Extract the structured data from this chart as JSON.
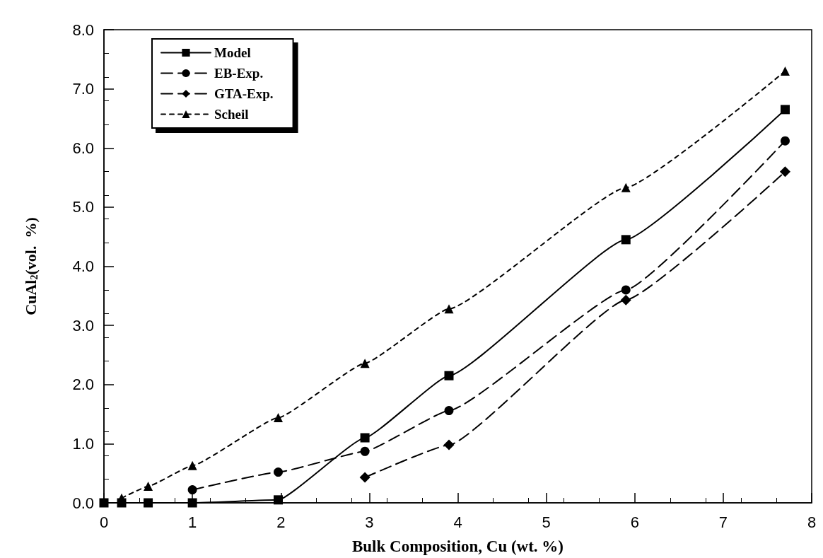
{
  "chart_data": {
    "type": "line",
    "xlabel": "Bulk Composition, Cu (wt. %)",
    "ylabel": "CuAl$_{2}$(vol.  %)",
    "x": [
      0,
      0.2,
      0.5,
      1,
      1.97,
      2.95,
      3.9,
      5.9,
      7.7
    ],
    "series": [
      {
        "name": "Model",
        "color": "#000000",
        "marker": "square",
        "line_style": "solid",
        "values": [
          0,
          0,
          0,
          0,
          0.05,
          1.1,
          2.15,
          4.45,
          6.65
        ]
      },
      {
        "name": "EB-Exp.",
        "color": "#000000",
        "marker": "circle",
        "line_style": "dashed",
        "x": [
          1,
          1.97,
          2.95,
          3.9,
          5.9,
          7.7
        ],
        "values": [
          0.22,
          0.52,
          0.87,
          1.56,
          3.6,
          6.12
        ]
      },
      {
        "name": "GTA-Exp.",
        "color": "#000000",
        "marker": "diamond",
        "line_style": "dashed",
        "x": [
          2.95,
          3.9,
          5.9,
          7.7
        ],
        "values": [
          0.43,
          0.98,
          3.43,
          5.6
        ]
      },
      {
        "name": "Scheil",
        "color": "#000000",
        "marker": "triangle",
        "line_style": "dotted",
        "x": [
          0.2,
          0.5,
          1,
          1.97,
          2.95,
          3.9,
          5.9,
          7.7
        ],
        "values": [
          0.08,
          0.28,
          0.63,
          1.44,
          2.36,
          3.28,
          5.33,
          7.3
        ]
      }
    ],
    "xlim": [
      0,
      8
    ],
    "xticks": [
      0,
      1,
      2,
      3,
      4,
      5,
      6,
      7,
      8
    ],
    "ylim": [
      0,
      8
    ],
    "yticks": [
      {
        "value": 0,
        "label": "0.0"
      },
      {
        "value": 1,
        "label": "1.0"
      },
      {
        "value": 2,
        "label": "2.0"
      },
      {
        "value": 3,
        "label": "3.0"
      },
      {
        "value": 4,
        "label": "4.0"
      },
      {
        "value": 5,
        "label": "5.0"
      },
      {
        "value": 6,
        "label": "6.0"
      },
      {
        "value": 7,
        "label": "7.0"
      },
      {
        "value": 8,
        "label": "8.0"
      }
    ],
    "grid": false,
    "legend": "top left"
  }
}
